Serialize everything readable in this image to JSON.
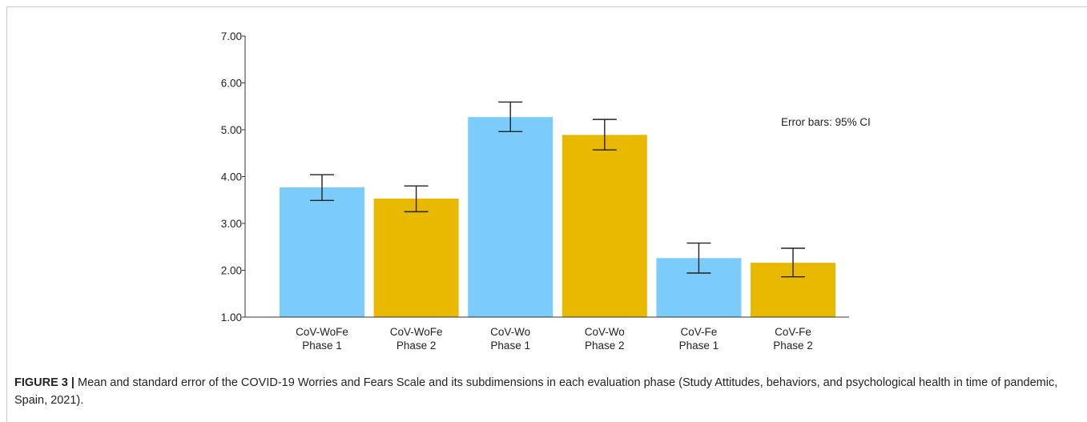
{
  "chart_data": {
    "type": "bar",
    "categories": [
      [
        "CoV-WoFe",
        "Phase 1"
      ],
      [
        "CoV-WoFe",
        "Phase 2"
      ],
      [
        "CoV-Wo",
        "Phase 1"
      ],
      [
        "CoV-Wo",
        "Phase 2"
      ],
      [
        "CoV-Fe",
        "Phase 1"
      ],
      [
        "CoV-Fe",
        "Phase 2"
      ]
    ],
    "values": [
      3.77,
      3.53,
      5.27,
      4.89,
      2.26,
      2.16
    ],
    "error_low": [
      3.49,
      3.25,
      4.96,
      4.57,
      1.94,
      1.86
    ],
    "error_high": [
      4.04,
      3.8,
      5.59,
      5.22,
      2.58,
      2.47
    ],
    "bar_colors": [
      "#7bccfb",
      "#e8b900",
      "#7bccfb",
      "#e8b900",
      "#7bccfb",
      "#e8b900"
    ],
    "ylim": [
      1.0,
      7.0
    ],
    "yticks": [
      "1.00",
      "2.00",
      "3.00",
      "4.00",
      "5.00",
      "6.00",
      "7.00"
    ],
    "annotation": "Error bars: 95% CI",
    "grid": false
  },
  "caption": {
    "label": "FIGURE 3 |",
    "text": " Mean and standard error of the COVID-19 Worries and Fears Scale and its subdimensions in each evaluation phase (Study Attitudes, behaviors, and psychological health in time of pandemic, Spain, 2021)."
  }
}
